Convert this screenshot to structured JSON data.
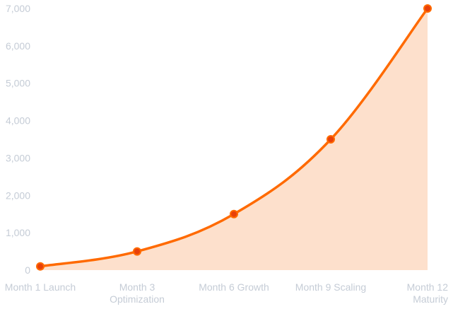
{
  "chart_data": {
    "type": "area",
    "categories": [
      [
        "Month 1 Launch"
      ],
      [
        "Month 3",
        "Optimization"
      ],
      [
        "Month 6 Growth"
      ],
      [
        "Month 9 Scaling"
      ],
      [
        "Month 12",
        "Maturity"
      ]
    ],
    "series": [
      {
        "values": [
          100,
          500,
          1500,
          3500,
          7000
        ]
      }
    ],
    "yticks": [
      "0",
      "1,000",
      "2,000",
      "3,000",
      "4,000",
      "5,000",
      "6,000",
      "7,000"
    ],
    "ylim": [
      0,
      7000
    ],
    "grid": false,
    "legend": "none",
    "colors": {
      "line": "#ff6a00",
      "fill": "#fde0cc",
      "marker_fill": "#e8400a",
      "tick_text": "#c5ccd6"
    }
  }
}
